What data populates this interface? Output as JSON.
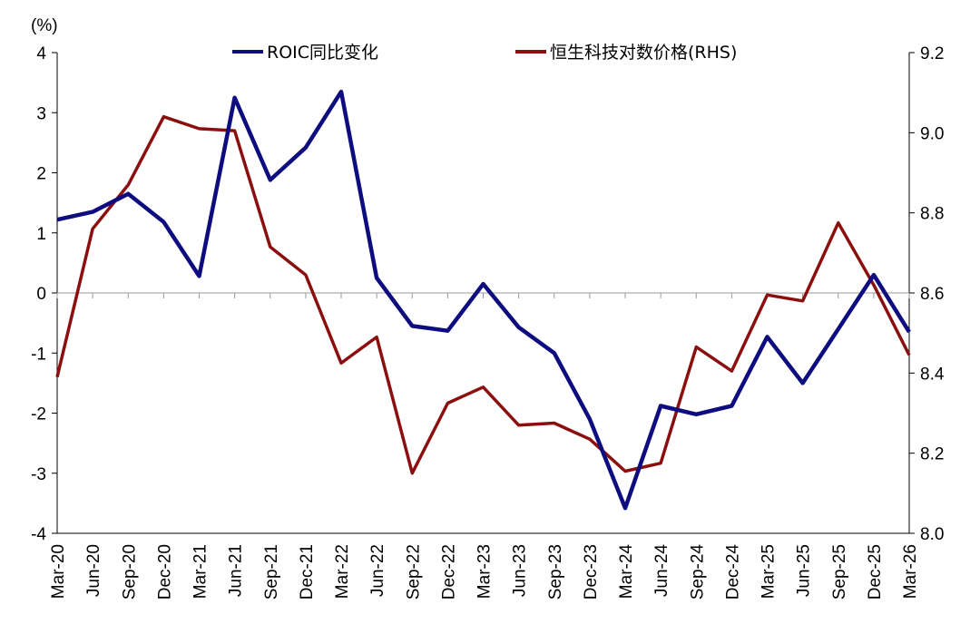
{
  "chart_data": {
    "type": "line",
    "categories": [
      "Mar-20",
      "Jun-20",
      "Sep-20",
      "Dec-20",
      "Mar-21",
      "Jun-21",
      "Sep-21",
      "Dec-21",
      "Mar-22",
      "Jun-22",
      "Sep-22",
      "Dec-22",
      "Mar-23",
      "Jun-23",
      "Sep-23",
      "Dec-23",
      "Mar-24",
      "Jun-24",
      "Sep-24",
      "Dec-24",
      "Mar-25",
      "Jun-25",
      "Sep-25",
      "Dec-25",
      "Mar-26"
    ],
    "left_axis": {
      "unit_label": "(%)",
      "min": -4,
      "max": 4,
      "ticks": [
        -4,
        -3,
        -2,
        -1,
        0,
        1,
        2,
        3,
        4
      ]
    },
    "right_axis": {
      "min": 8.0,
      "max": 9.2,
      "ticks": [
        "8.0",
        "8.2",
        "8.4",
        "8.6",
        "8.8",
        "9.0",
        "9.2"
      ]
    },
    "series": [
      {
        "name": "ROIC同比变化",
        "axis": "left",
        "color": "#0d0d80",
        "values": [
          1.22,
          1.35,
          1.65,
          1.18,
          0.28,
          3.25,
          1.88,
          2.42,
          3.35,
          0.25,
          -0.55,
          -0.63,
          0.15,
          -0.57,
          -1.0,
          -2.1,
          -3.58,
          -1.88,
          -2.02,
          -1.88,
          -0.73,
          -1.5,
          -0.6,
          0.3,
          -0.65
        ]
      },
      {
        "name": "恒生科技对数价格(RHS)",
        "axis": "right",
        "color": "#8b0f0f",
        "values": [
          8.39,
          8.76,
          8.87,
          9.04,
          9.01,
          9.005,
          8.715,
          8.645,
          8.425,
          8.49,
          8.15,
          8.325,
          8.365,
          8.27,
          8.275,
          8.235,
          8.155,
          8.175,
          8.465,
          8.405,
          8.595,
          8.58,
          8.775,
          8.62,
          8.445
        ]
      }
    ],
    "legend_position": "top"
  }
}
